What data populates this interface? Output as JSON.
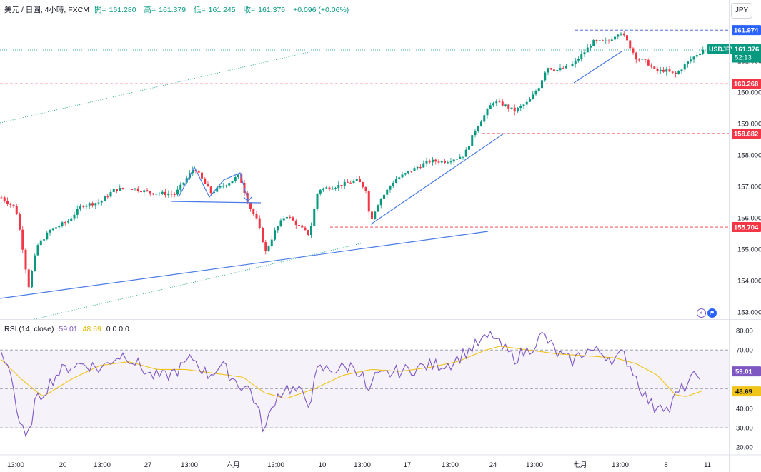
{
  "legend": {
    "symbol": "美元 / 日圓, 4小時, FXCM",
    "open_label": "開=",
    "open": "161.280",
    "high_label": "高=",
    "high": "161.379",
    "low_label": "低=",
    "low": "161.245",
    "close_label": "收=",
    "close": "161.376",
    "change": "+0.096 (+0.06%)"
  },
  "currency_button": "JPY",
  "price_axis": {
    "ticks": [
      "162.000",
      "161.000",
      "160.000",
      "159.000",
      "158.000",
      "157.000",
      "156.000",
      "155.000",
      "154.000",
      "153.000"
    ],
    "current_symbol": "USDJPY",
    "current_price": "161.376",
    "countdown": "52:13",
    "levels": [
      "161.974",
      "160.268",
      "158.682",
      "155.704"
    ]
  },
  "rsi": {
    "label": "RSI (14, close)",
    "value": "59.01",
    "ma_value": "48.69",
    "extra": "0 0 0 0",
    "ticks": [
      "80.00",
      "70.00",
      "60.00",
      "50.00",
      "40.00",
      "30.00",
      "20.00"
    ],
    "axis_value": "59.01",
    "axis_ma_value": "48.69"
  },
  "time_axis": [
    "13:00",
    "20",
    "13:00",
    "27",
    "13:00",
    "六月",
    "13:00",
    "10",
    "13:00",
    "17",
    "13:00",
    "24",
    "13:00",
    "七月",
    "13:00",
    "8",
    "11"
  ],
  "colors": {
    "up": "#089981",
    "down": "#f23645",
    "trend": "#4a7be6",
    "rsi": "#7e57c2",
    "rsi_ma": "#f0c419"
  },
  "icons": [
    "flash-icon",
    "us-flag-icon"
  ]
}
